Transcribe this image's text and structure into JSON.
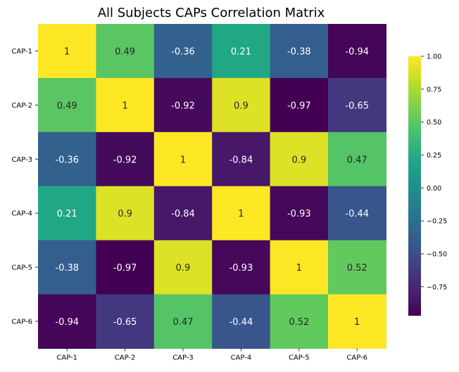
{
  "chart_data": {
    "type": "heatmap",
    "title": "All Subjects CAPs Correlation Matrix",
    "x_categories": [
      "CAP-1",
      "CAP-2",
      "CAP-3",
      "CAP-4",
      "CAP-5",
      "CAP-6"
    ],
    "y_categories": [
      "CAP-1",
      "CAP-2",
      "CAP-3",
      "CAP-4",
      "CAP-5",
      "CAP-6"
    ],
    "values": [
      [
        1,
        0.49,
        -0.36,
        0.21,
        -0.38,
        -0.94
      ],
      [
        0.49,
        1,
        -0.92,
        0.9,
        -0.97,
        -0.65
      ],
      [
        -0.36,
        -0.92,
        1,
        -0.84,
        0.9,
        0.47
      ],
      [
        0.21,
        0.9,
        -0.84,
        1,
        -0.93,
        -0.44
      ],
      [
        -0.38,
        -0.97,
        0.9,
        -0.93,
        1,
        0.52
      ],
      [
        -0.94,
        -0.65,
        0.47,
        -0.44,
        0.52,
        1
      ]
    ],
    "annotated": true,
    "colormap": "viridis",
    "colorbar": {
      "min": -0.97,
      "max": 1.0,
      "ticks": [
        1.0,
        0.75,
        0.5,
        0.25,
        0.0,
        -0.25,
        -0.5,
        -0.75
      ],
      "tick_labels": [
        "1.00",
        "0.75",
        "0.50",
        "0.25",
        "0.00",
        "−0.25",
        "−0.50",
        "−0.75"
      ]
    }
  }
}
